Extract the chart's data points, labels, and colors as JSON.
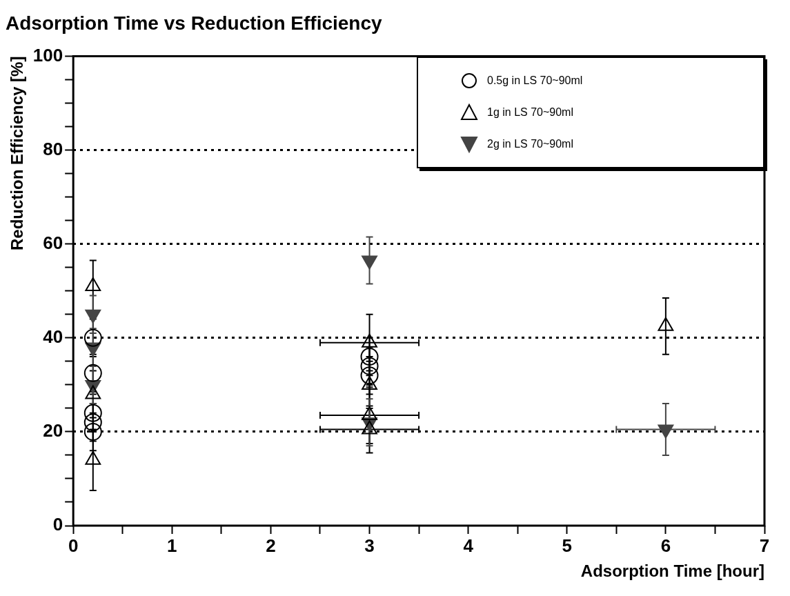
{
  "chart_data": {
    "type": "scatter",
    "title": "Adsorption Time vs Reduction Efficiency",
    "xlabel": "Adsorption Time [hour]",
    "ylabel": "Reduction Efficiency [%]",
    "xlim": [
      0,
      7
    ],
    "ylim": [
      0,
      100
    ],
    "xticks": [
      0,
      {
        "value": 0.5,
        "label": null
      },
      1,
      {
        "value": 1.5,
        "label": null
      },
      2,
      {
        "value": 2.5,
        "label": null
      },
      3,
      {
        "value": 3.5,
        "label": null
      },
      4,
      {
        "value": 4.5,
        "label": null
      },
      5,
      {
        "value": 5.5,
        "label": null
      },
      6,
      {
        "value": 6.5,
        "label": null
      },
      7
    ],
    "yticks": [
      0,
      {
        "value": 5,
        "label": null
      },
      {
        "value": 10,
        "label": null
      },
      {
        "value": 15,
        "label": null
      },
      20,
      {
        "value": 25,
        "label": null
      },
      {
        "value": 30,
        "label": null
      },
      {
        "value": 35,
        "label": null
      },
      40,
      {
        "value": 45,
        "label": null
      },
      {
        "value": 50,
        "label": null
      },
      {
        "value": 55,
        "label": null
      },
      60,
      {
        "value": 65,
        "label": null
      },
      {
        "value": 70,
        "label": null
      },
      {
        "value": 75,
        "label": null
      },
      80,
      {
        "value": 85,
        "label": null
      },
      {
        "value": 90,
        "label": null
      },
      {
        "value": 95,
        "label": null
      },
      100
    ],
    "grid": "y",
    "legend": "top right",
    "series": [
      {
        "name": "0.5g in LS 70~90ml",
        "color": "#000000",
        "marker": "circle",
        "x": [
          0.2,
          0.2,
          0.2,
          0.2,
          0.2,
          3,
          3,
          3
        ],
        "values": [
          20,
          22,
          24,
          32.5,
          40,
          32,
          34,
          36
        ],
        "errors": [
          4,
          4,
          4,
          4,
          4,
          4,
          4,
          4
        ]
      },
      {
        "name": "1g in LS 70~90ml",
        "color": "#000000",
        "marker": "triangle",
        "x": [
          0.2,
          0.2,
          0.2,
          3,
          3,
          3,
          3,
          6
        ],
        "values": [
          51,
          28,
          14,
          39,
          30,
          23.5,
          20.5,
          42.5
        ],
        "errors": [
          5.5,
          5,
          6.5,
          6,
          5,
          6,
          5,
          6
        ],
        "xerrors": [
          null,
          null,
          null,
          0.5,
          null,
          0.5,
          0.5,
          null
        ]
      },
      {
        "name": "2g in LS 70~90ml",
        "color": "#444444",
        "marker": "triangle-down",
        "x": [
          0.2,
          0.2,
          0.2,
          3,
          3,
          6
        ],
        "values": [
          45,
          38,
          30,
          56.5,
          22,
          20.5
        ],
        "errors": [
          4,
          4,
          4,
          5,
          5,
          5.5
        ],
        "xerrors": [
          null,
          null,
          null,
          null,
          null,
          0.5
        ]
      }
    ]
  }
}
